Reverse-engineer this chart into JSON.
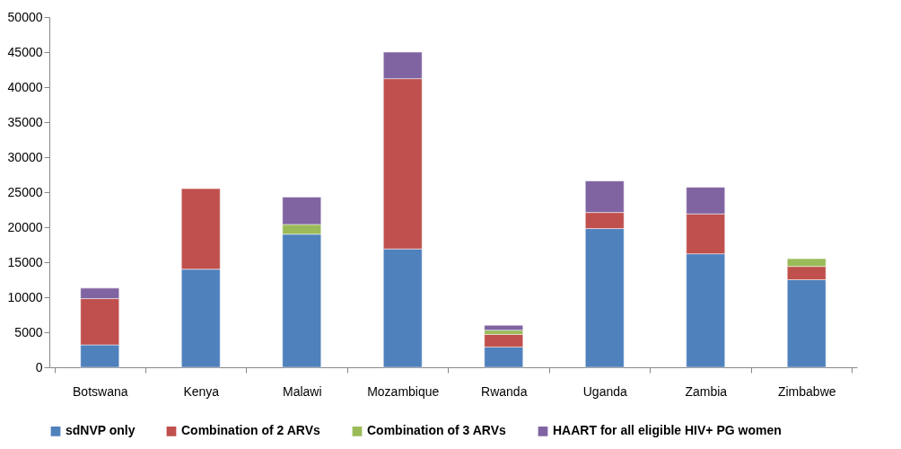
{
  "chart_data": {
    "type": "bar",
    "stacked": true,
    "categories": [
      "Botswana",
      "Kenya",
      "Malawi",
      "Mozambique",
      "Rwanda",
      "Uganda",
      "Zambia",
      "Zimbabwe"
    ],
    "series": [
      {
        "name": "sdNVP only",
        "color": "#4f81bd",
        "values": [
          3200,
          14000,
          19000,
          16900,
          2900,
          19800,
          16200,
          12500
        ]
      },
      {
        "name": "Combination of 2 ARVs",
        "color": "#c0504d",
        "values": [
          6600,
          11500,
          null,
          24300,
          1800,
          2300,
          5700,
          1900
        ]
      },
      {
        "name": "Combination of 3 ARVs",
        "color": "#9bbb59",
        "values": [
          null,
          null,
          1400,
          null,
          600,
          null,
          null,
          1100
        ]
      },
      {
        "name": "HAART for all eligible HIV+ PG women",
        "color": "#8064a2",
        "values": [
          1500,
          null,
          3900,
          3800,
          700,
          4500,
          3800,
          null
        ]
      }
    ],
    "ylim": [
      0,
      50000
    ],
    "yticks": [
      0,
      5000,
      10000,
      15000,
      20000,
      25000,
      30000,
      35000,
      40000,
      45000,
      50000
    ],
    "grid": false,
    "legend": "bottom"
  }
}
